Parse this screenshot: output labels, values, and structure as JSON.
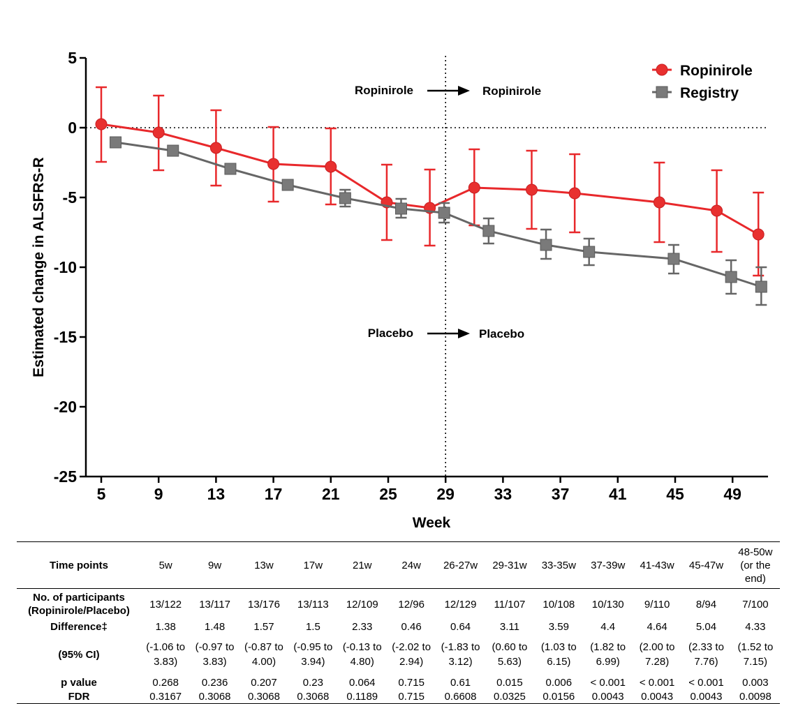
{
  "chart_data": {
    "type": "line",
    "title": "",
    "xlabel": "Week",
    "ylabel": "Estimated change in ALSFRS-R",
    "xlim": [
      4.5,
      51
    ],
    "ylim": [
      -25,
      5
    ],
    "xticks": [
      5,
      9,
      13,
      17,
      21,
      25,
      29,
      33,
      37,
      41,
      45,
      49
    ],
    "yticks": [
      5,
      0,
      -5,
      -10,
      -15,
      -20,
      -25
    ],
    "reference_hline": 0,
    "reference_vline": 29,
    "legend_position": "top-right",
    "series": [
      {
        "name": "Ropinirole",
        "color": "#e8282b",
        "marker": "circle",
        "x": [
          5,
          9,
          13,
          17,
          21,
          24.9,
          27.9,
          31,
          35,
          38,
          43.9,
          47.9,
          50.8
        ],
        "y": [
          0.25,
          -0.35,
          -1.45,
          -2.6,
          -2.8,
          -5.35,
          -5.75,
          -4.3,
          -4.45,
          -4.7,
          -5.35,
          -5.95,
          -7.65
        ],
        "err_low": [
          -2.45,
          -3.05,
          -4.15,
          -5.3,
          -5.5,
          -8.05,
          -8.45,
          -7.0,
          -7.25,
          -7.5,
          -8.2,
          -8.9,
          -10.6
        ],
        "err_high": [
          2.9,
          2.3,
          1.25,
          0.05,
          -0.05,
          -2.65,
          -3.0,
          -1.55,
          -1.65,
          -1.9,
          -2.5,
          -3.05,
          -4.65
        ]
      },
      {
        "name": "Registry",
        "color": "#777777",
        "marker": "square",
        "x": [
          6,
          10,
          14,
          18,
          22,
          25.9,
          28.9,
          32,
          36,
          39,
          44.9,
          48.9,
          51
        ],
        "y": [
          -1.05,
          -1.65,
          -2.95,
          -4.1,
          -5.05,
          -5.8,
          -6.1,
          -7.4,
          -8.4,
          -8.9,
          -9.4,
          -10.7,
          -11.4
        ],
        "err_low": [
          -1.05,
          -1.65,
          -2.95,
          -4.1,
          -5.65,
          -6.45,
          -6.8,
          -8.3,
          -9.4,
          -9.85,
          -10.45,
          -11.9,
          -12.7
        ],
        "err_high": [
          -1.05,
          -1.65,
          -2.95,
          -4.1,
          -4.45,
          -5.1,
          -5.4,
          -6.5,
          -7.3,
          -7.95,
          -8.4,
          -9.5,
          -10.0
        ]
      }
    ],
    "annotations": [
      {
        "text": "Ropinirole",
        "arrow_text": "Ropinirole",
        "y_level": 2.7
      },
      {
        "text": "Placebo",
        "arrow_text": "Placebo",
        "y_level": -14.7
      }
    ]
  },
  "table": {
    "row_labels": {
      "time_points": "Time points",
      "participants_1": "No. of participants",
      "participants_2": "(Ropinirole/Placebo)",
      "difference": "Difference‡",
      "ci": "(95% CI)",
      "p_value": "p value",
      "fdr": "FDR"
    },
    "time_points": [
      "5w",
      "9w",
      "13w",
      "17w",
      "21w",
      "24w",
      "26-27w",
      "29-31w",
      "33-35w",
      "37-39w",
      "41-43w",
      "45-47w",
      "48-50w (or the end)"
    ],
    "participants": [
      "13/122",
      "13/117",
      "13/176",
      "13/113",
      "12/109",
      "12/96",
      "12/129",
      "11/107",
      "10/108",
      "10/130",
      "9/110",
      "8/94",
      "7/100"
    ],
    "difference": [
      "1.38",
      "1.48",
      "1.57",
      "1.5",
      "2.33",
      "0.46",
      "0.64",
      "3.11",
      "3.59",
      "4.4",
      "4.64",
      "5.04",
      "4.33"
    ],
    "ci": [
      "(-1.06 to 3.83)",
      "(-0.97 to 3.83)",
      "(-0.87 to 4.00)",
      "(-0.95 to 3.94)",
      "(-0.13 to 4.80)",
      "(-2.02 to 2.94)",
      "(-1.83 to 3.12)",
      "(0.60 to 5.63)",
      "(1.03 to 6.15)",
      "(1.82 to 6.99)",
      "(2.00 to 7.28)",
      "(2.33 to 7.76)",
      "(1.52 to 7.15)"
    ],
    "p_value": [
      "0.268",
      "0.236",
      "0.207",
      "0.23",
      "0.064",
      "0.715",
      "0.61",
      "0.015",
      "0.006",
      "< 0.001",
      "< 0.001",
      "< 0.001",
      "0.003"
    ],
    "fdr": [
      "0.3167",
      "0.3068",
      "0.3068",
      "0.3068",
      "0.1189",
      "0.715",
      "0.6608",
      "0.0325",
      "0.0156",
      "0.0043",
      "0.0043",
      "0.0043",
      "0.0098"
    ]
  }
}
